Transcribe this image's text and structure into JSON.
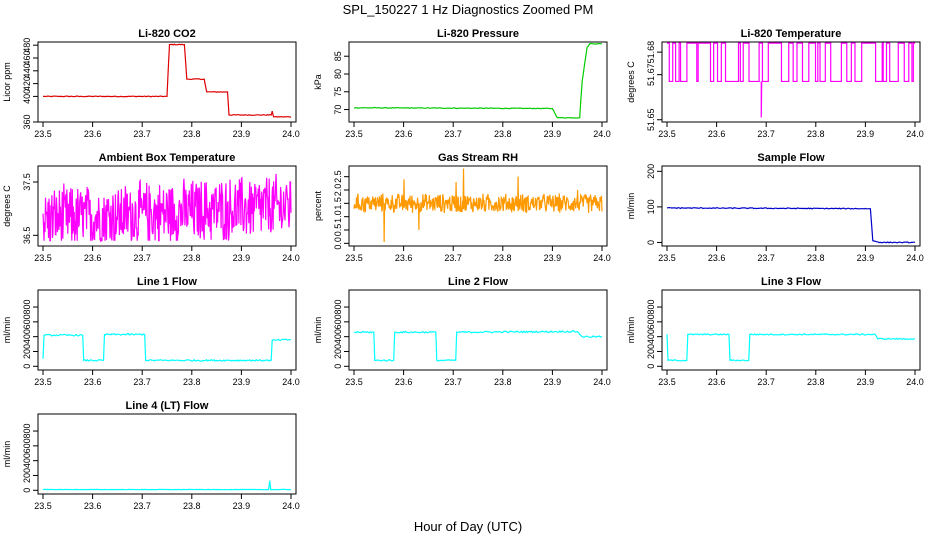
{
  "figure": {
    "title": "SPL_150227  1 Hz Diagnostics Zoomed PM",
    "xlabel": "Hour of Day (UTC)"
  },
  "chart_data": [
    {
      "type": "line",
      "title": "Li-820 CO2",
      "ylabel": "Licor ppm",
      "color": "#dd0000",
      "xlim": [
        23.5,
        24.0
      ],
      "ylim": [
        360,
        485
      ],
      "xticks": [
        "23.5",
        "23.6",
        "23.7",
        "23.8",
        "23.9",
        "24.0"
      ],
      "yticks": [
        {
          "v": 360,
          "label": "360"
        },
        {
          "v": 400,
          "label": "400"
        },
        {
          "v": 420,
          "label": "420"
        },
        {
          "v": 440,
          "label": "440"
        },
        {
          "v": 460,
          "label": "460"
        },
        {
          "v": 480,
          "label": "480"
        }
      ],
      "noise": 0.6,
      "points": [
        [
          23.5,
          400
        ],
        [
          23.75,
          400
        ],
        [
          23.755,
          481
        ],
        [
          23.785,
          481
        ],
        [
          23.79,
          427
        ],
        [
          23.825,
          427
        ],
        [
          23.83,
          407
        ],
        [
          23.872,
          407
        ],
        [
          23.875,
          371
        ],
        [
          23.96,
          371
        ],
        [
          23.962,
          377
        ],
        [
          23.965,
          368
        ],
        [
          24.0,
          368
        ]
      ]
    },
    {
      "type": "line",
      "title": "Li-820 Pressure",
      "ylabel": "kPa",
      "color": "#00cc00",
      "xlim": [
        23.5,
        24.0
      ],
      "ylim": [
        66.5,
        89
      ],
      "xticks": [
        "23.5",
        "23.6",
        "23.7",
        "23.8",
        "23.9",
        "24.0"
      ],
      "yticks": [
        {
          "v": 70,
          "label": "70"
        },
        {
          "v": 75,
          "label": "75"
        },
        {
          "v": 80,
          "label": "80"
        },
        {
          "v": 85,
          "label": "85"
        }
      ],
      "noise": 0.1,
      "points": [
        [
          23.5,
          70.5
        ],
        [
          23.9,
          70.3
        ],
        [
          23.91,
          67.7
        ],
        [
          23.955,
          67.7
        ],
        [
          23.96,
          78
        ],
        [
          23.97,
          87.5
        ],
        [
          23.975,
          88.5
        ],
        [
          24.0,
          88.5
        ]
      ]
    },
    {
      "type": "line",
      "title": "Li-820 Temperature",
      "ylabel": "degrees C",
      "color": "#ff00ff",
      "xlim": [
        23.5,
        24.0
      ],
      "ylim": [
        51.649,
        51.6845
      ],
      "xticks": [
        "23.5",
        "23.6",
        "23.7",
        "23.8",
        "23.9",
        "24.0"
      ],
      "yticks": [
        {
          "v": 51.65,
          "label": "51.65"
        },
        {
          "v": 51.67,
          "label": "51.67"
        },
        {
          "v": 51.68,
          "label": "51.68"
        }
      ],
      "pattern": "toggle",
      "low": 51.667,
      "high": 51.684,
      "dip": [
        23.69,
        51.651
      ],
      "points": [
        [
          23.5,
          51.684
        ],
        [
          24.0,
          51.684
        ]
      ]
    },
    {
      "type": "line",
      "title": "Ambient Box Temperature",
      "ylabel": "degrees C",
      "color": "#ff00ff",
      "xlim": [
        23.5,
        24.0
      ],
      "ylim": [
        36.3,
        37.8
      ],
      "xticks": [
        "23.5",
        "23.6",
        "23.7",
        "23.8",
        "23.9",
        "24.0"
      ],
      "yticks": [
        {
          "v": 36.5,
          "label": "36.5"
        },
        {
          "v": 37.5,
          "label": "37.5"
        }
      ],
      "pattern": "dense",
      "low": 36.4,
      "high": 37.75,
      "trend": [
        36.8,
        37.05
      ],
      "points": [
        [
          23.5,
          36.8
        ],
        [
          24.0,
          37.05
        ]
      ]
    },
    {
      "type": "line",
      "title": "Gas Stream RH",
      "ylabel": "percent",
      "color": "#ff9900",
      "xlim": [
        23.5,
        24.0
      ],
      "ylim": [
        -0.1,
        2.9
      ],
      "xticks": [
        "23.5",
        "23.6",
        "23.7",
        "23.8",
        "23.9",
        "24.0"
      ],
      "yticks": [
        {
          "v": 0,
          "label": "0.0"
        },
        {
          "v": 0.5,
          "label": "0.5"
        },
        {
          "v": 1,
          "label": "1.0"
        },
        {
          "v": 1.5,
          "label": "1.5"
        },
        {
          "v": 2,
          "label": "2.0"
        },
        {
          "v": 2.5,
          "label": "2.5"
        }
      ],
      "pattern": "dense",
      "low": 1.1,
      "high": 1.9,
      "spikes": [
        [
          23.56,
          0.05
        ],
        [
          23.72,
          2.8
        ],
        [
          23.705,
          2.3
        ],
        [
          23.83,
          2.5
        ],
        [
          23.63,
          0.5
        ],
        [
          23.95,
          2.0
        ],
        [
          23.6,
          2.4
        ]
      ],
      "points": [
        [
          23.5,
          1.5
        ],
        [
          24.0,
          1.5
        ]
      ]
    },
    {
      "type": "line",
      "title": "Sample Flow",
      "ylabel": "ml/min",
      "color": "#0000cc",
      "xlim": [
        23.5,
        24.0
      ],
      "ylim": [
        -10,
        215
      ],
      "xticks": [
        "23.5",
        "23.6",
        "23.7",
        "23.8",
        "23.9",
        "24.0"
      ],
      "yticks": [
        {
          "v": 0,
          "label": "0"
        },
        {
          "v": 100,
          "label": "100"
        },
        {
          "v": 200,
          "label": "200"
        }
      ],
      "noise": 1.2,
      "points": [
        [
          23.5,
          97
        ],
        [
          23.91,
          95
        ],
        [
          23.915,
          5
        ],
        [
          23.93,
          0
        ],
        [
          24.0,
          0
        ]
      ]
    },
    {
      "type": "line",
      "title": "Line 1 Flow",
      "ylabel": "ml/min",
      "color": "#00ffff",
      "xlim": [
        23.5,
        24.0
      ],
      "ylim": [
        -50,
        1030
      ],
      "xticks": [
        "23.5",
        "23.6",
        "23.7",
        "23.8",
        "23.9",
        "24.0"
      ],
      "yticks": [
        {
          "v": 0,
          "label": "0"
        },
        {
          "v": 200,
          "label": "200"
        },
        {
          "v": 400,
          "label": "400"
        },
        {
          "v": 600,
          "label": "600"
        },
        {
          "v": 800,
          "label": "800"
        }
      ],
      "noise": 10,
      "points": [
        [
          23.5,
          100
        ],
        [
          23.502,
          420
        ],
        [
          23.58,
          420
        ],
        [
          23.582,
          80
        ],
        [
          23.622,
          80
        ],
        [
          23.624,
          430
        ],
        [
          23.705,
          430
        ],
        [
          23.707,
          80
        ],
        [
          23.96,
          80
        ],
        [
          23.962,
          350
        ],
        [
          24.0,
          360
        ]
      ]
    },
    {
      "type": "line",
      "title": "Line 2 Flow",
      "ylabel": "ml/min",
      "color": "#00ffff",
      "xlim": [
        23.5,
        24.0
      ],
      "ylim": [
        -50,
        1030
      ],
      "xticks": [
        "23.5",
        "23.6",
        "23.7",
        "23.8",
        "23.9",
        "24.0"
      ],
      "yticks": [
        {
          "v": 0,
          "label": "0"
        },
        {
          "v": 200,
          "label": "200"
        },
        {
          "v": 400,
          "label": "400"
        },
        {
          "v": 600,
          "label": "600"
        },
        {
          "v": 800,
          "label": "800"
        }
      ],
      "noise": 10,
      "points": [
        [
          23.5,
          460
        ],
        [
          23.54,
          460
        ],
        [
          23.542,
          80
        ],
        [
          23.58,
          80
        ],
        [
          23.582,
          460
        ],
        [
          23.665,
          460
        ],
        [
          23.667,
          80
        ],
        [
          23.705,
          80
        ],
        [
          23.707,
          460
        ],
        [
          23.95,
          470
        ],
        [
          23.96,
          400
        ],
        [
          24.0,
          400
        ]
      ]
    },
    {
      "type": "line",
      "title": "Line 3 Flow",
      "ylabel": "ml/min",
      "color": "#00ffff",
      "xlim": [
        23.5,
        24.0
      ],
      "ylim": [
        -50,
        1030
      ],
      "xticks": [
        "23.5",
        "23.6",
        "23.7",
        "23.8",
        "23.9",
        "24.0"
      ],
      "yticks": [
        {
          "v": 0,
          "label": "0"
        },
        {
          "v": 200,
          "label": "200"
        },
        {
          "v": 400,
          "label": "400"
        },
        {
          "v": 600,
          "label": "600"
        },
        {
          "v": 800,
          "label": "800"
        }
      ],
      "noise": 8,
      "points": [
        [
          23.5,
          430
        ],
        [
          23.502,
          80
        ],
        [
          23.54,
          80
        ],
        [
          23.542,
          430
        ],
        [
          23.625,
          430
        ],
        [
          23.627,
          80
        ],
        [
          23.665,
          80
        ],
        [
          23.667,
          430
        ],
        [
          23.92,
          430
        ],
        [
          23.925,
          370
        ],
        [
          24.0,
          370
        ]
      ]
    },
    {
      "type": "line",
      "title": "Line 4 (LT) Flow",
      "ylabel": "ml/min",
      "color": "#00ffff",
      "xlim": [
        23.5,
        24.0
      ],
      "ylim": [
        -50,
        1030
      ],
      "xticks": [
        "23.5",
        "23.6",
        "23.7",
        "23.8",
        "23.9",
        "24.0"
      ],
      "yticks": [
        {
          "v": 0,
          "label": "0"
        },
        {
          "v": 200,
          "label": "200"
        },
        {
          "v": 400,
          "label": "400"
        },
        {
          "v": 600,
          "label": "600"
        },
        {
          "v": 800,
          "label": "800"
        }
      ],
      "noise": 2,
      "points": [
        [
          23.5,
          10
        ],
        [
          23.955,
          10
        ],
        [
          23.957,
          130
        ],
        [
          23.959,
          10
        ],
        [
          24.0,
          10
        ]
      ]
    }
  ]
}
